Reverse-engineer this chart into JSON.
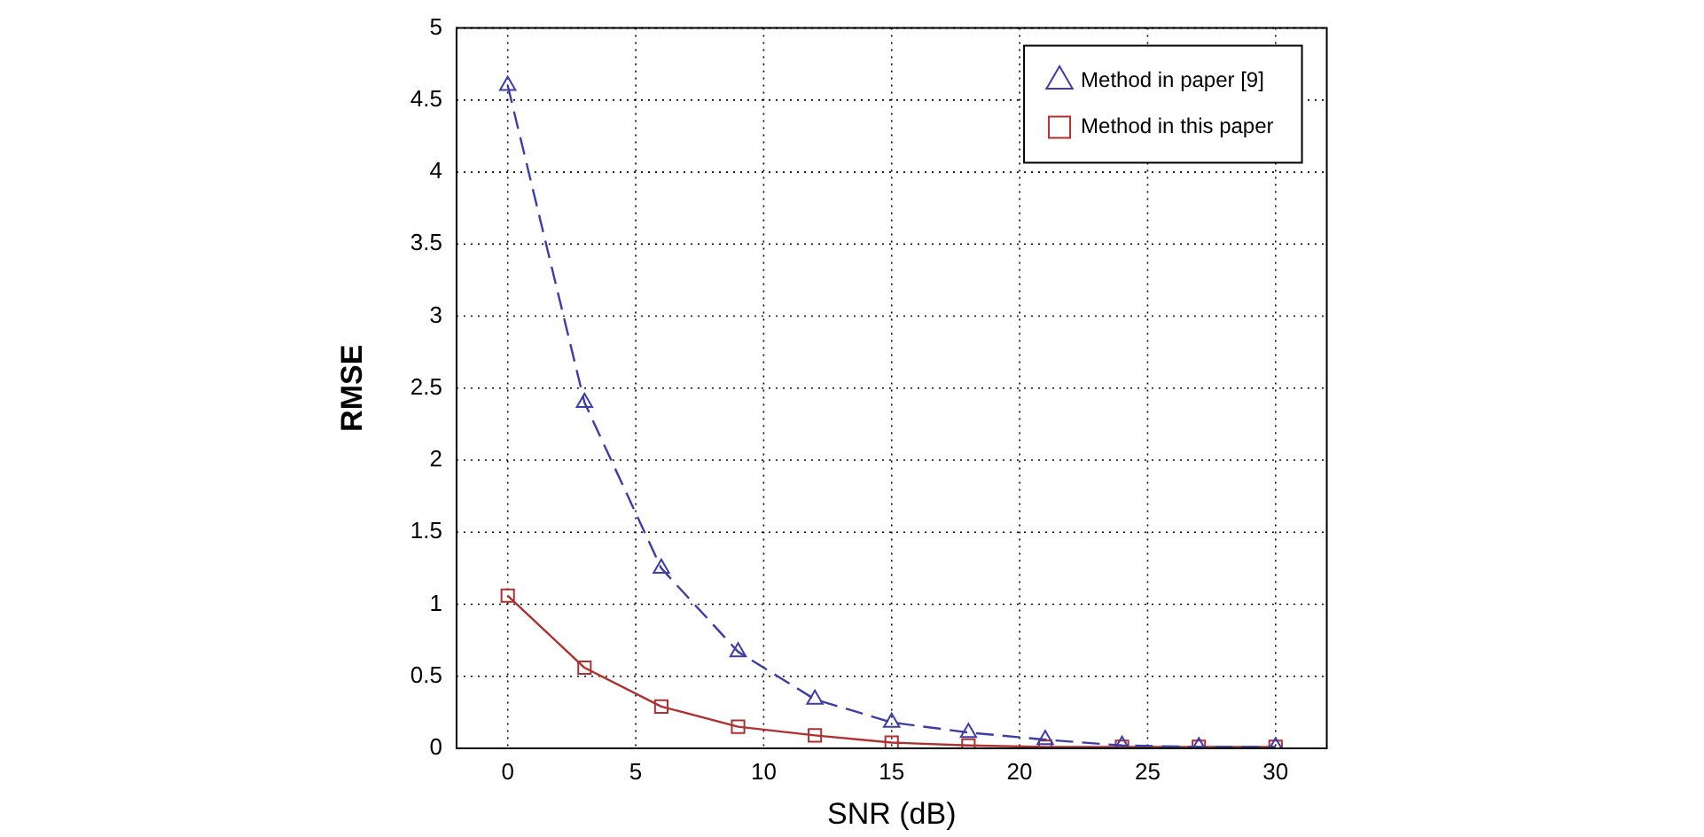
{
  "chart_data": {
    "type": "line",
    "xlabel": "SNR (dB)",
    "ylabel": "RMSE",
    "x": [
      0,
      3,
      6,
      9,
      12,
      15,
      18,
      21,
      24,
      27,
      30
    ],
    "series": [
      {
        "name": "Method in paper [9]",
        "color": "#3c3caa",
        "marker": "triangle",
        "line_style": "dashed",
        "values": [
          4.6,
          2.4,
          1.25,
          0.67,
          0.34,
          0.18,
          0.11,
          0.06,
          0.02,
          0.01,
          0.01
        ]
      },
      {
        "name": "Method in this paper",
        "color": "#b03030",
        "marker": "square",
        "line_style": "solid",
        "values": [
          1.06,
          0.56,
          0.29,
          0.15,
          0.09,
          0.04,
          0.02,
          0.01,
          0.01,
          0.01,
          0.01
        ]
      }
    ],
    "xlim": [
      -2,
      32
    ],
    "xticks": [
      0,
      5,
      10,
      15,
      20,
      25,
      30
    ],
    "ylim": [
      0,
      5
    ],
    "yticks": [
      0,
      0.5,
      1,
      1.5,
      2,
      2.5,
      3,
      3.5,
      4,
      4.5,
      5
    ],
    "grid": true,
    "legend": "top right"
  }
}
